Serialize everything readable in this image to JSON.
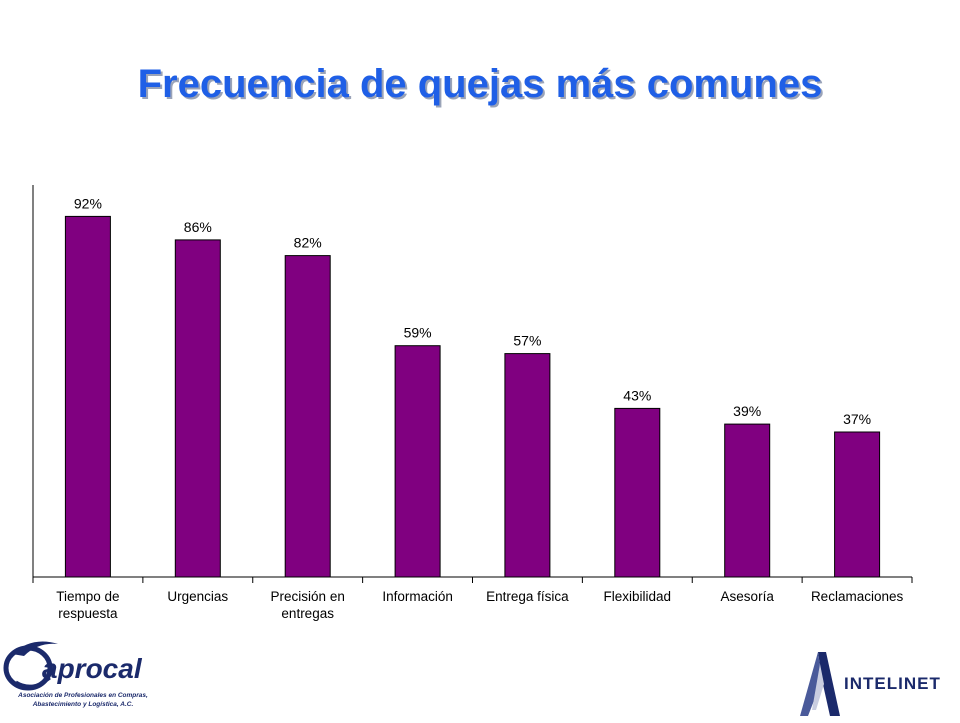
{
  "slide": {
    "title": "Frecuencia de quejas más comunes"
  },
  "chart_data": {
    "type": "bar",
    "categories": [
      [
        "Tiempo de",
        "respuesta"
      ],
      [
        "Urgencias"
      ],
      [
        "Precisión en",
        "entregas"
      ],
      [
        "Información"
      ],
      [
        "Entrega física"
      ],
      [
        "Flexibilidad"
      ],
      [
        "Asesoría"
      ],
      [
        "Reclamaciones"
      ]
    ],
    "values": [
      92,
      86,
      82,
      59,
      57,
      43,
      39,
      37
    ],
    "data_labels": [
      "92%",
      "86%",
      "82%",
      "59%",
      "57%",
      "43%",
      "39%",
      "37%"
    ],
    "ylim": [
      0,
      100
    ],
    "grid": false,
    "legend": "none",
    "bar_color": "#800080"
  },
  "logos": {
    "left": {
      "name": "aprocal",
      "tagline": [
        "Asociación de Profesionales en Compras,",
        "Abastecimiento y Logística, A.C."
      ],
      "color": "#1b2a6b"
    },
    "right": {
      "name": "INTELINET",
      "color": "#1b2a6b"
    }
  }
}
